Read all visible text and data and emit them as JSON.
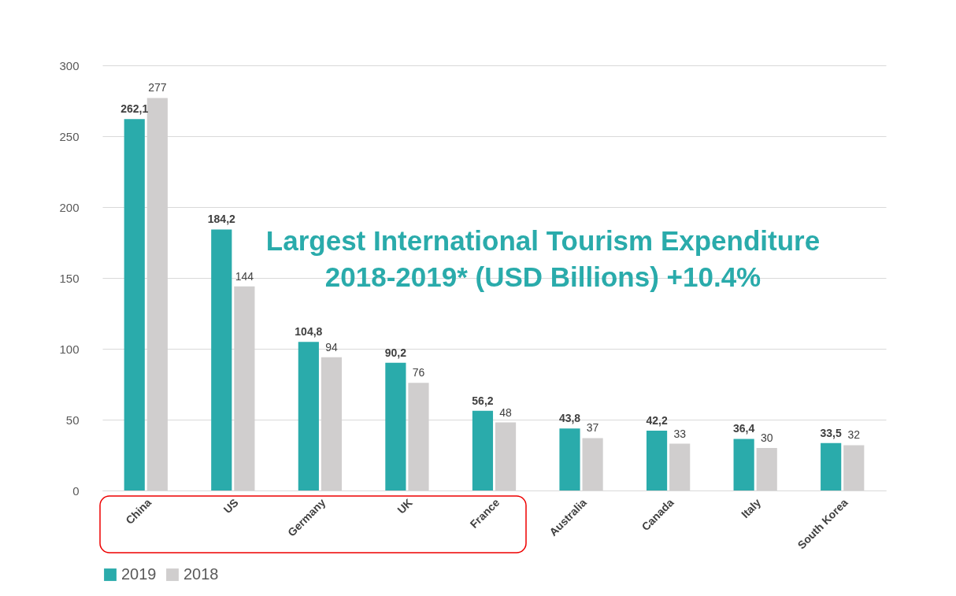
{
  "chart_data": {
    "type": "bar",
    "title": [
      "Largest International Tourism Expenditure",
      "2018-2019* (USD Billions) +10.4%"
    ],
    "categories": [
      "China",
      "US",
      "Germany",
      "UK",
      "France",
      "Australia",
      "Canada",
      "Italy",
      "South Korea"
    ],
    "series": [
      {
        "name": "2019",
        "color": "#2aabab",
        "values": [
          262.1,
          184.2,
          104.8,
          90.2,
          56.2,
          43.8,
          42.2,
          36.4,
          33.5
        ],
        "value_labels": [
          "262,1",
          "184,2",
          "104,8",
          "90,2",
          "56,2",
          "43,8",
          "42,2",
          "36,4",
          "33,5"
        ]
      },
      {
        "name": "2018",
        "color": "#d0cece",
        "values": [
          277,
          144,
          94,
          76,
          48,
          37,
          33,
          30,
          32
        ],
        "value_labels": [
          "277",
          "144",
          "94",
          "76",
          "48",
          "37",
          "33",
          "30",
          "32"
        ]
      }
    ],
    "ylim": [
      0,
      300
    ],
    "yticks": [
      0,
      50,
      100,
      150,
      200,
      250,
      300
    ],
    "grid": "y",
    "legend": "bottom"
  }
}
